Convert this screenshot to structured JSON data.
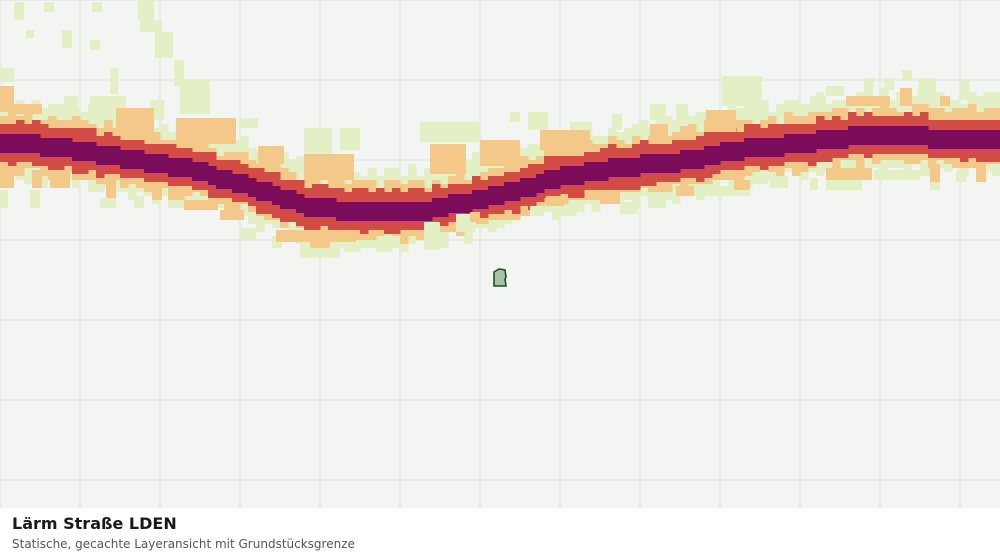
{
  "map": {
    "background_color": "#f3f5f2",
    "grid_color": "#dcdedb",
    "noise_classes": [
      {
        "level": "low",
        "color": "#e3efc4"
      },
      {
        "level": "medium",
        "color": "#f4c888"
      },
      {
        "level": "high",
        "color": "#d24b45"
      },
      {
        "level": "very-high",
        "color": "#7a0c5a"
      }
    ],
    "parcel": {
      "fill": "#a8c3a2",
      "stroke": "#1f4f2a"
    }
  },
  "caption": {
    "title": "Lärm Straße LDEN",
    "subtitle": "Statische, gecachte Layeransicht mit Grundstücksgrenze"
  }
}
